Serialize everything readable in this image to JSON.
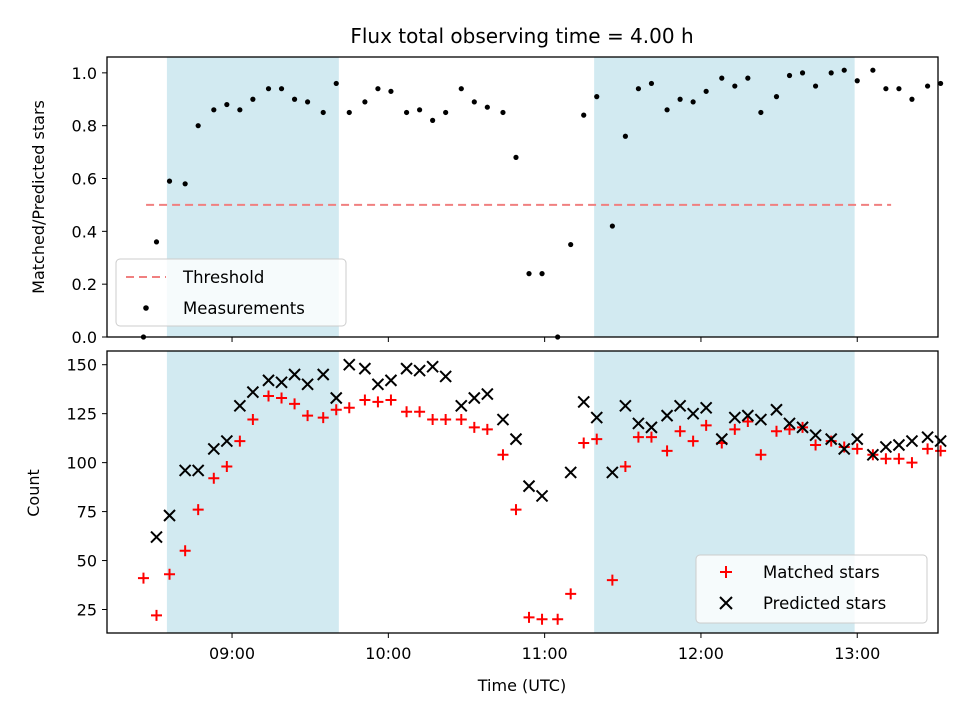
{
  "title": "Flux total observing time = 4.00 h",
  "colors": {
    "span": "#add8e6",
    "threshold": "#f08080",
    "measurement": "#000000",
    "matched": "#ff0000",
    "predicted": "#000000"
  },
  "chart_data": [
    {
      "type": "scatter",
      "panel": "top",
      "ylabel": "Matched/Predicted stars",
      "ylim": [
        0,
        1.06
      ],
      "yticks": [
        0.0,
        0.2,
        0.4,
        0.6,
        0.8,
        1.0
      ],
      "ytick_labels": [
        "0.0",
        "0.2",
        "0.4",
        "0.6",
        "0.8",
        "1.0"
      ],
      "xlim": [
        "08:12",
        "13:31"
      ],
      "xticks": [
        "09:00",
        "10:00",
        "11:00",
        "12:00",
        "13:00"
      ],
      "tick_labels_shown": false,
      "shaded_spans": [
        [
          "08:35",
          "09:41"
        ],
        [
          "11:19",
          "12:59"
        ]
      ],
      "threshold": {
        "name": "Threshold",
        "y": 0.5,
        "x_start": "08:27",
        "x_end": "13:13",
        "style": "dashed"
      },
      "legend": {
        "position": "lower-left",
        "entries": [
          "Threshold",
          "Measurements"
        ]
      },
      "series": [
        {
          "name": "Measurements",
          "marker": "dot",
          "points": [
            [
              "08:26",
              0.0
            ],
            [
              "08:31",
              0.36
            ],
            [
              "08:36",
              0.59
            ],
            [
              "08:42",
              0.58
            ],
            [
              "08:47",
              0.8
            ],
            [
              "08:53",
              0.86
            ],
            [
              "08:58",
              0.88
            ],
            [
              "09:03",
              0.86
            ],
            [
              "09:08",
              0.9
            ],
            [
              "09:14",
              0.94
            ],
            [
              "09:19",
              0.94
            ],
            [
              "09:24",
              0.9
            ],
            [
              "09:29",
              0.89
            ],
            [
              "09:35",
              0.85
            ],
            [
              "09:40",
              0.96
            ],
            [
              "09:45",
              0.85
            ],
            [
              "09:51",
              0.89
            ],
            [
              "09:56",
              0.94
            ],
            [
              "10:01",
              0.93
            ],
            [
              "10:07",
              0.85
            ],
            [
              "10:12",
              0.86
            ],
            [
              "10:17",
              0.82
            ],
            [
              "10:22",
              0.85
            ],
            [
              "10:28",
              0.94
            ],
            [
              "10:33",
              0.89
            ],
            [
              "10:38",
              0.87
            ],
            [
              "10:44",
              0.85
            ],
            [
              "10:49",
              0.68
            ],
            [
              "10:54",
              0.24
            ],
            [
              "10:59",
              0.24
            ],
            [
              "11:05",
              0.0
            ],
            [
              "11:10",
              0.35
            ],
            [
              "11:15",
              0.84
            ],
            [
              "11:20",
              0.91
            ],
            [
              "11:26",
              0.42
            ],
            [
              "11:31",
              0.76
            ],
            [
              "11:36",
              0.94
            ],
            [
              "11:41",
              0.96
            ],
            [
              "11:47",
              0.86
            ],
            [
              "11:52",
              0.9
            ],
            [
              "11:57",
              0.89
            ],
            [
              "12:02",
              0.93
            ],
            [
              "12:08",
              0.98
            ],
            [
              "12:13",
              0.95
            ],
            [
              "12:18",
              0.98
            ],
            [
              "12:23",
              0.85
            ],
            [
              "12:29",
              0.91
            ],
            [
              "12:34",
              0.99
            ],
            [
              "12:39",
              1.0
            ],
            [
              "12:44",
              0.95
            ],
            [
              "12:50",
              1.0
            ],
            [
              "12:55",
              1.01
            ],
            [
              "13:00",
              0.97
            ],
            [
              "13:06",
              1.01
            ],
            [
              "13:11",
              0.94
            ],
            [
              "13:16",
              0.94
            ],
            [
              "13:21",
              0.9
            ],
            [
              "13:27",
              0.95
            ],
            [
              "13:32",
              0.96
            ]
          ]
        }
      ]
    },
    {
      "type": "scatter",
      "panel": "bottom",
      "xlabel": "Time (UTC)",
      "ylabel": "Count",
      "ylim": [
        13,
        157
      ],
      "yticks": [
        25,
        50,
        75,
        100,
        125,
        150
      ],
      "ytick_labels": [
        "25",
        "50",
        "75",
        "100",
        "125",
        "150"
      ],
      "xlim": [
        "08:12",
        "13:31"
      ],
      "xticks": [
        "09:00",
        "10:00",
        "11:00",
        "12:00",
        "13:00"
      ],
      "xtick_labels": [
        "09:00",
        "10:00",
        "11:00",
        "12:00",
        "13:00"
      ],
      "shaded_spans": [
        [
          "08:35",
          "09:41"
        ],
        [
          "11:19",
          "12:59"
        ]
      ],
      "legend": {
        "position": "lower-right",
        "entries": [
          "Matched stars",
          "Predicted stars"
        ]
      },
      "series": [
        {
          "name": "Matched stars",
          "marker": "plus",
          "points": [
            [
              "08:26",
              41
            ],
            [
              "08:31",
              22
            ],
            [
              "08:36",
              43
            ],
            [
              "08:42",
              55
            ],
            [
              "08:47",
              76
            ],
            [
              "08:53",
              92
            ],
            [
              "08:58",
              98
            ],
            [
              "09:03",
              111
            ],
            [
              "09:08",
              122
            ],
            [
              "09:14",
              134
            ],
            [
              "09:19",
              133
            ],
            [
              "09:24",
              130
            ],
            [
              "09:29",
              124
            ],
            [
              "09:35",
              123
            ],
            [
              "09:40",
              127
            ],
            [
              "09:45",
              128
            ],
            [
              "09:51",
              132
            ],
            [
              "09:56",
              131
            ],
            [
              "10:01",
              132
            ],
            [
              "10:07",
              126
            ],
            [
              "10:12",
              126
            ],
            [
              "10:17",
              122
            ],
            [
              "10:22",
              122
            ],
            [
              "10:28",
              122
            ],
            [
              "10:33",
              118
            ],
            [
              "10:38",
              117
            ],
            [
              "10:44",
              104
            ],
            [
              "10:49",
              76
            ],
            [
              "10:54",
              21
            ],
            [
              "10:59",
              20
            ],
            [
              "11:05",
              20
            ],
            [
              "11:10",
              33
            ],
            [
              "11:15",
              110
            ],
            [
              "11:20",
              112
            ],
            [
              "11:26",
              40
            ],
            [
              "11:31",
              98
            ],
            [
              "11:36",
              113
            ],
            [
              "11:41",
              113
            ],
            [
              "11:47",
              106
            ],
            [
              "11:52",
              116
            ],
            [
              "11:57",
              111
            ],
            [
              "12:02",
              119
            ],
            [
              "12:08",
              110
            ],
            [
              "12:13",
              117
            ],
            [
              "12:18",
              121
            ],
            [
              "12:23",
              104
            ],
            [
              "12:29",
              116
            ],
            [
              "12:34",
              117
            ],
            [
              "12:39",
              118
            ],
            [
              "12:44",
              109
            ],
            [
              "12:50",
              111
            ],
            [
              "12:55",
              108
            ],
            [
              "13:00",
              107
            ],
            [
              "13:06",
              104
            ],
            [
              "13:11",
              102
            ],
            [
              "13:16",
              102
            ],
            [
              "13:21",
              100
            ],
            [
              "13:27",
              107
            ],
            [
              "13:32",
              106
            ]
          ]
        },
        {
          "name": "Predicted stars",
          "marker": "x",
          "points": [
            [
              "08:31",
              62
            ],
            [
              "08:36",
              73
            ],
            [
              "08:42",
              96
            ],
            [
              "08:47",
              96
            ],
            [
              "08:53",
              107
            ],
            [
              "08:58",
              111
            ],
            [
              "09:03",
              129
            ],
            [
              "09:08",
              136
            ],
            [
              "09:14",
              142
            ],
            [
              "09:19",
              141
            ],
            [
              "09:24",
              145
            ],
            [
              "09:29",
              140
            ],
            [
              "09:35",
              145
            ],
            [
              "09:40",
              133
            ],
            [
              "09:45",
              150
            ],
            [
              "09:51",
              148
            ],
            [
              "09:56",
              140
            ],
            [
              "10:01",
              142
            ],
            [
              "10:07",
              148
            ],
            [
              "10:12",
              147
            ],
            [
              "10:17",
              149
            ],
            [
              "10:22",
              144
            ],
            [
              "10:28",
              129
            ],
            [
              "10:33",
              133
            ],
            [
              "10:38",
              135
            ],
            [
              "10:44",
              122
            ],
            [
              "10:49",
              112
            ],
            [
              "10:54",
              88
            ],
            [
              "10:59",
              83
            ],
            [
              "11:10",
              95
            ],
            [
              "11:15",
              131
            ],
            [
              "11:20",
              123
            ],
            [
              "11:26",
              95
            ],
            [
              "11:31",
              129
            ],
            [
              "11:36",
              120
            ],
            [
              "11:41",
              118
            ],
            [
              "11:47",
              124
            ],
            [
              "11:52",
              129
            ],
            [
              "11:57",
              125
            ],
            [
              "12:02",
              128
            ],
            [
              "12:08",
              112
            ],
            [
              "12:13",
              123
            ],
            [
              "12:18",
              124
            ],
            [
              "12:23",
              122
            ],
            [
              "12:29",
              127
            ],
            [
              "12:34",
              120
            ],
            [
              "12:39",
              118
            ],
            [
              "12:44",
              114
            ],
            [
              "12:50",
              112
            ],
            [
              "12:55",
              107
            ],
            [
              "13:00",
              112
            ],
            [
              "13:06",
              104
            ],
            [
              "13:11",
              108
            ],
            [
              "13:16",
              109
            ],
            [
              "13:21",
              111
            ],
            [
              "13:27",
              113
            ],
            [
              "13:32",
              111
            ]
          ]
        }
      ]
    }
  ]
}
